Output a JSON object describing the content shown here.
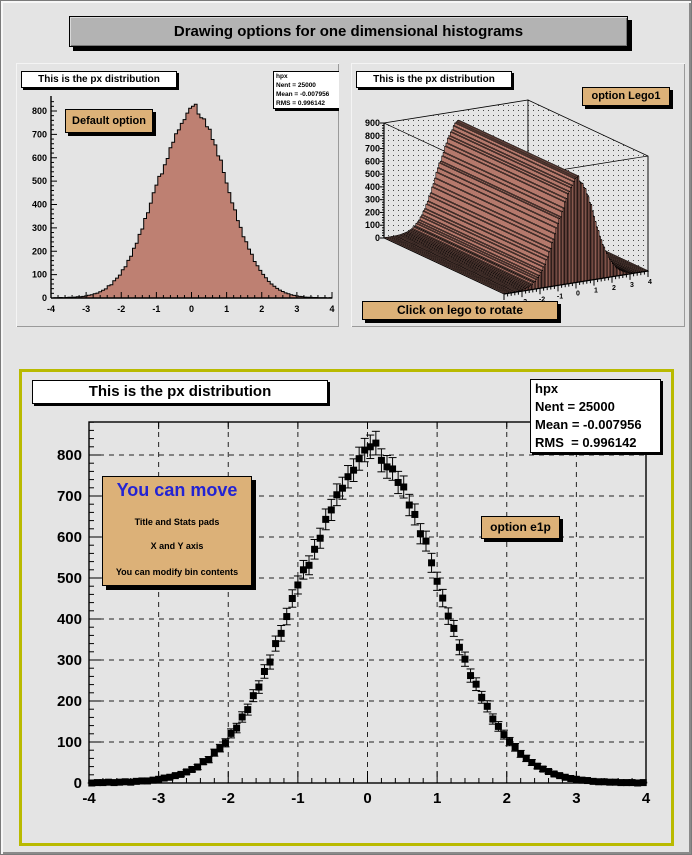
{
  "window": {
    "title": "Drawing options for one dimensional histograms"
  },
  "colors": {
    "canvas_bg": "#e4e4e4",
    "title_bar_bg": "#b3b3b3",
    "histogram_fill": "#be8072",
    "lego_side": "#b5796c",
    "lego_top": "#c78f80",
    "lego_dark": "#9c655a",
    "pave_tan": "#dcb178",
    "selected_pad_border": "#b9ba00",
    "note_heading_blue": "#2323d3",
    "marker_black": "#000000"
  },
  "pad_default": {
    "title": "This is the px distribution",
    "option_label": "Default option",
    "stats": {
      "name": "hpx",
      "entries": "Nent = 25000",
      "mean": "Mean = -0.007956",
      "rms": "RMS = 0.996142"
    }
  },
  "pad_lego": {
    "title": "This is the px distribution",
    "option_label": "option Lego1",
    "button_label": "Click on lego to rotate"
  },
  "pad_e1p": {
    "title": "This is the px distribution",
    "option_label": "option e1p",
    "stats": {
      "name": "hpx",
      "entries": "Nent = 25000",
      "mean": "Mean = -0.007956",
      "rms": "RMS  = 0.996142"
    },
    "note": {
      "heading": "You can move",
      "lines": [
        "Title and Stats pads",
        "X and Y axis",
        "You can modify bin contents"
      ]
    }
  },
  "chart_data": {
    "histogram_hpx": {
      "name": "hpx",
      "entries": 25000,
      "mean": -0.007956,
      "rms": 0.996142,
      "bins": 100,
      "xmin": -4,
      "xmax": 4,
      "bin_step": 0.08,
      "bin_centers_start": -3.96,
      "values": [
        0,
        1,
        1,
        2,
        1,
        2,
        3,
        2,
        4,
        5,
        5,
        7,
        9,
        12,
        14,
        18,
        21,
        27,
        33,
        39,
        52,
        57,
        74,
        85,
        98,
        121,
        134,
        161,
        179,
        213,
        234,
        272,
        295,
        340,
        365,
        406,
        450,
        483,
        520,
        531,
        570,
        597,
        643,
        666,
        703,
        719,
        747,
        763,
        791,
        812,
        820,
        829,
        787,
        771,
        766,
        733,
        722,
        678,
        655,
        608,
        590,
        537,
        492,
        451,
        407,
        377,
        331,
        302,
        262,
        241,
        209,
        187,
        156,
        138,
        118,
        101,
        87,
        71,
        60,
        50,
        41,
        34,
        28,
        22,
        18,
        14,
        11,
        9,
        7,
        6,
        4,
        3,
        3,
        2,
        2,
        1,
        1,
        1,
        0,
        1
      ]
    },
    "charts": [
      {
        "type": "bar",
        "pad": "top-left",
        "title": "This is the px distribution",
        "xlabel": "",
        "ylabel": "",
        "xlim": [
          -4,
          4
        ],
        "ylim": [
          0,
          860
        ],
        "x_ticks": [
          -4,
          -3,
          -2,
          -1,
          0,
          1,
          2,
          3,
          4
        ],
        "y_ticks": [
          0,
          100,
          200,
          300,
          400,
          500,
          600,
          700,
          800
        ],
        "grid": false,
        "legend": "none",
        "series": "histogram_hpx",
        "style": "filled step histogram, salmon fill, black outline"
      },
      {
        "type": "lego3d",
        "pad": "top-right",
        "title": "This is the px distribution",
        "xlim": [
          -4,
          4
        ],
        "zlim": [
          0,
          900
        ],
        "x_ticks": [
          -4,
          -3,
          -2,
          -1,
          0,
          1,
          2,
          3,
          4
        ],
        "z_ticks": [
          0,
          100,
          200,
          300,
          400,
          500,
          600,
          700,
          800,
          900
        ],
        "grid": false,
        "legend": "none",
        "series": "histogram_hpx",
        "style": "option Lego1: 3D salmon bars, dotted back walls and floor"
      },
      {
        "type": "scatter",
        "pad": "bottom",
        "title": "This is the px distribution",
        "xlim": [
          -4,
          4
        ],
        "ylim": [
          0,
          880
        ],
        "x_ticks": [
          -4,
          -3,
          -2,
          -1,
          0,
          1,
          2,
          3,
          4
        ],
        "y_ticks": [
          0,
          100,
          200,
          300,
          400,
          500,
          600,
          700,
          800
        ],
        "grid": "dashed",
        "legend": "none",
        "series": "histogram_hpx",
        "marker": "filled-square",
        "errors": "sqrt(value)",
        "style": "option e1p: black square markers with error bars on dashed grid"
      }
    ]
  }
}
